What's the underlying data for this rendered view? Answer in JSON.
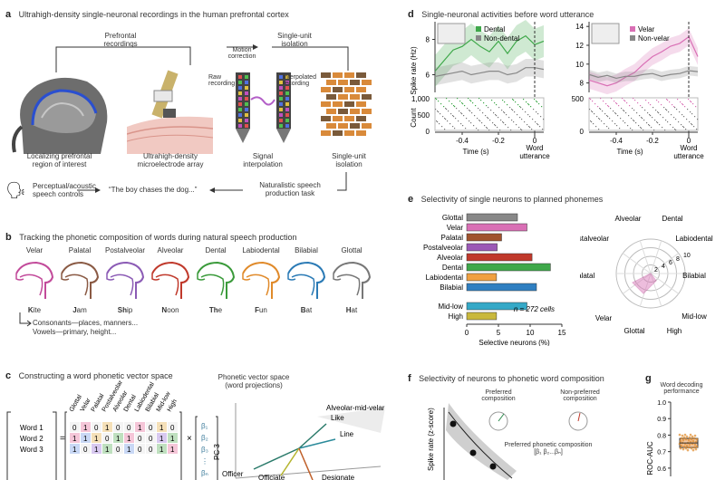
{
  "panel_a": {
    "label": "a",
    "title": "Ultrahigh-density single-neuronal recordings in the human prefrontal cortex",
    "prefrontal_recordings": "Prefrontal\nrecordings",
    "single_unit_isolation_top": "Single-unit\nisolation",
    "motion_correction": "Motion\ncorrection",
    "raw_recording": "Raw\nrecording",
    "interpolated_recording": "Interpolated\nrecording",
    "captions": [
      "Localizing prefrontal\nregion of interest",
      "Ultrahigh-density\nmicroelectrode array",
      "Signal\ninterpolation",
      "Single-unit\nisolation"
    ],
    "controls": "Perceptual/acoustic\nspeech controls",
    "sentence": "“The boy chases the dog...”",
    "task": "Naturalistic speech\nproduction task"
  },
  "panel_b": {
    "label": "b",
    "title": "Tracking the phonetic composition of words during natural speech production",
    "places": [
      "Velar",
      "Palatal",
      "Postalveolar",
      "Alveolar",
      "Dental",
      "Labiodental",
      "Bilabial",
      "Glottal"
    ],
    "words_bold": [
      "K",
      "J",
      "Sh",
      "N",
      "Th",
      "F",
      "B",
      "H"
    ],
    "words_rest": [
      "ite",
      "am",
      "ip",
      "oon",
      "e",
      "un",
      "at",
      "at"
    ],
    "colors": [
      "#c24a9a",
      "#8a5a44",
      "#8b5bb5",
      "#c0392b",
      "#3a9a3a",
      "#e08a2a",
      "#2a7ab5",
      "#777777"
    ],
    "note1": "Consonants—places, manners...",
    "note2": "Vowels—primary, height..."
  },
  "panel_c": {
    "label": "c",
    "title": "Constructing a word phonetic vector space",
    "words": [
      "Word 1",
      "Word 2",
      "Word 3"
    ],
    "col_headers": [
      "Glottal",
      "Velar",
      "Palatal",
      "Postalveolar",
      "Alveolar",
      "Dental",
      "Labiodental",
      "Bilabial",
      "Mid-low",
      "High"
    ],
    "matrix": [
      [
        "0",
        "1",
        "0",
        "1",
        "0",
        "0",
        "1",
        "0",
        "1",
        "0"
      ],
      [
        "1",
        "1",
        "1",
        "0",
        "1",
        "1",
        "0",
        "0",
        "1",
        "1"
      ],
      [
        "1",
        "0",
        "1",
        "1",
        "0",
        "1",
        "0",
        "0",
        "1",
        "1"
      ]
    ],
    "eq": "=",
    "times": "×",
    "betas": [
      "β₁",
      "β₂",
      "β₃",
      "⋮",
      "βₙ"
    ],
    "space_title": "Phonetic vector space\n(word projections)",
    "pc3": "PC 3",
    "vec_labels": [
      "Alveolar-mid-velar",
      "Like",
      "Line",
      "Officer",
      "Officiate",
      "Designate"
    ]
  },
  "panel_d": {
    "label": "d",
    "title": "Single-neuronal activities before word utterance",
    "ylabel_top": "Spike rate (Hz)",
    "ylabel_bottom": "Count",
    "xlabel": "Time (s)",
    "utterance": "Word\nutterance",
    "left": {
      "legend": [
        "Dental",
        "Non-dental"
      ],
      "yticks": [
        "8",
        "6"
      ],
      "count_ticks": [
        "1,000",
        "500",
        "0"
      ]
    },
    "right": {
      "legend": [
        "Velar",
        "Non-velar"
      ],
      "yticks": [
        "14",
        "12",
        "10",
        "8"
      ],
      "count_ticks": [
        "500",
        "0"
      ]
    },
    "xticks": [
      "-0.4",
      "-0.2",
      "0"
    ]
  },
  "panel_e": {
    "label": "e",
    "title": "Selectivity of single neurons to planned phonemes",
    "xlabel": "Selective neurons (%)",
    "annotation": "n = 272 cells",
    "xticks": [
      "0",
      "5",
      "10",
      "15"
    ],
    "polar_labels": [
      "Alveolar",
      "Dental",
      "Labiodental",
      "Postalveolar",
      "Bilabial",
      "Palatal",
      "Velar",
      "Mid-low",
      "Glottal",
      "High"
    ],
    "polar_rings": [
      "2",
      "4",
      "6",
      "8",
      "10"
    ]
  },
  "panel_f": {
    "label": "f",
    "title": "Selectivity of neurons to phonetic word composition",
    "ylabel": "Spike rate (z-score)",
    "preferred": "Preferred\ncomposition",
    "nonpreferred": "Non-preferred\ncomposition",
    "pref_comp": "Preferred phonetic composition\n[β₁ β₂...βₙ]"
  },
  "panel_g": {
    "label": "g",
    "title": "Word decoding\nperformance",
    "ylabel": "ROC-AUC",
    "yticks": [
      "1.0",
      "0.9",
      "0.8",
      "0.7",
      "0.6"
    ]
  },
  "chart_data": [
    {
      "type": "bar",
      "title": "Selectivity of single neurons to planned phonemes",
      "categories": [
        "Glottal",
        "Velar",
        "Palatal",
        "Postalveolar",
        "Alveolar",
        "Dental",
        "Labiodental",
        "Bilabial",
        "Mid-low",
        "High"
      ],
      "values": [
        8,
        9.5,
        5.5,
        4.8,
        10.3,
        13.2,
        4.7,
        11,
        9.5,
        4.7
      ],
      "colors": [
        "#888888",
        "#d96fb5",
        "#a0522d",
        "#9b59b6",
        "#c0392b",
        "#3fa84a",
        "#f0a040",
        "#2f7fc1",
        "#35a9c7",
        "#c9b83c"
      ],
      "xlabel": "Selective neurons (%)",
      "xlim": [
        0,
        15
      ]
    },
    {
      "type": "line",
      "title": "Single-neuronal activities before word utterance",
      "x": [
        -0.55,
        -0.5,
        -0.45,
        -0.4,
        -0.35,
        -0.3,
        -0.25,
        -0.2,
        -0.15,
        -0.1,
        -0.05,
        0,
        0.05
      ],
      "series": [
        {
          "name": "Dental",
          "values": [
            6.2,
            6.8,
            7.4,
            7.6,
            8.0,
            7.6,
            7.3,
            7.9,
            7.2,
            7.9,
            8.2,
            7.7,
            7.9
          ]
        },
        {
          "name": "Non-dental",
          "values": [
            5.9,
            6.0,
            6.1,
            6.2,
            6.0,
            6.1,
            6.2,
            6.2,
            6.0,
            6.1,
            6.4,
            6.4,
            6.3
          ]
        }
      ],
      "xlabel": "Time (s)",
      "ylabel": "Spike rate (Hz)",
      "ylim": [
        5,
        9
      ]
    },
    {
      "type": "line",
      "x": [
        -0.55,
        -0.5,
        -0.45,
        -0.4,
        -0.35,
        -0.3,
        -0.25,
        -0.2,
        -0.15,
        -0.1,
        -0.05,
        0,
        0.05
      ],
      "series": [
        {
          "name": "Velar",
          "values": [
            8.3,
            8.0,
            7.7,
            8.0,
            8.6,
            9.1,
            10.0,
            10.8,
            11.3,
            11.9,
            12.2,
            12.9,
            10.8
          ]
        },
        {
          "name": "Non-velar",
          "values": [
            8.9,
            8.6,
            8.8,
            8.5,
            8.7,
            8.7,
            8.9,
            9.0,
            8.7,
            8.9,
            9.0,
            9.3,
            9.2
          ]
        }
      ],
      "xlabel": "Time (s)",
      "ylabel": "Spike rate (Hz)",
      "ylim": [
        7,
        14.5
      ]
    }
  ]
}
